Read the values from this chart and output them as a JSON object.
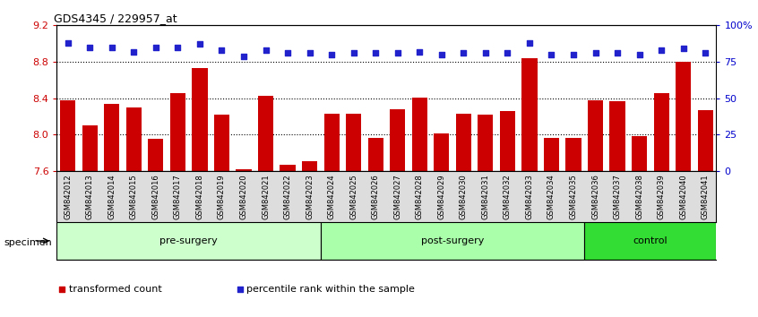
{
  "title": "GDS4345 / 229957_at",
  "categories": [
    "GSM842012",
    "GSM842013",
    "GSM842014",
    "GSM842015",
    "GSM842016",
    "GSM842017",
    "GSM842018",
    "GSM842019",
    "GSM842020",
    "GSM842021",
    "GSM842022",
    "GSM842023",
    "GSM842024",
    "GSM842025",
    "GSM842026",
    "GSM842027",
    "GSM842028",
    "GSM842029",
    "GSM842030",
    "GSM842031",
    "GSM842032",
    "GSM842033",
    "GSM842034",
    "GSM842035",
    "GSM842036",
    "GSM842037",
    "GSM842038",
    "GSM842039",
    "GSM842040",
    "GSM842041"
  ],
  "bar_values": [
    8.38,
    8.1,
    8.34,
    8.3,
    7.96,
    8.46,
    8.73,
    8.22,
    7.62,
    8.43,
    7.67,
    7.71,
    8.23,
    8.23,
    7.97,
    8.28,
    8.41,
    8.01,
    8.23,
    8.22,
    8.26,
    8.84,
    7.97,
    7.97,
    8.38,
    8.37,
    7.98,
    8.46,
    8.8,
    8.27
  ],
  "percentile_values": [
    88,
    85,
    85,
    82,
    85,
    85,
    87,
    83,
    79,
    83,
    81,
    81,
    80,
    81,
    81,
    81,
    82,
    80,
    81,
    81,
    81,
    88,
    80,
    80,
    81,
    81,
    80,
    83,
    84,
    81
  ],
  "groups": [
    {
      "label": "pre-surgery",
      "start": 0,
      "end": 12,
      "color": "#ccffcc"
    },
    {
      "label": "post-surgery",
      "start": 12,
      "end": 24,
      "color": "#aaffaa"
    },
    {
      "label": "control",
      "start": 24,
      "end": 30,
      "color": "#33dd33"
    }
  ],
  "bar_color": "#cc0000",
  "percentile_color": "#2222cc",
  "ylim_left": [
    7.6,
    9.2
  ],
  "ylim_right": [
    0,
    100
  ],
  "yticks_left": [
    7.6,
    8.0,
    8.4,
    8.8,
    9.2
  ],
  "yticks_right": [
    0,
    25,
    50,
    75,
    100
  ],
  "ytick_labels_right": [
    "0",
    "25",
    "50",
    "75",
    "100%"
  ],
  "grid_values": [
    8.0,
    8.4,
    8.8
  ],
  "legend_items": [
    {
      "label": "transformed count",
      "color": "#cc0000"
    },
    {
      "label": "percentile rank within the sample",
      "color": "#2222cc"
    }
  ],
  "figsize": [
    8.46,
    3.54
  ],
  "dpi": 100
}
